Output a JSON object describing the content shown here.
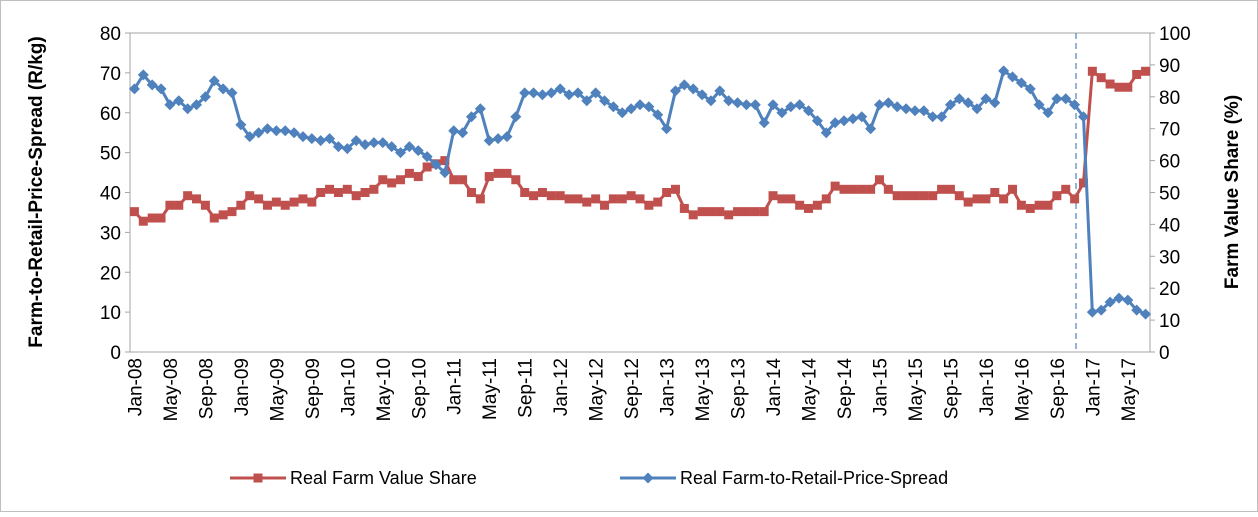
{
  "chart_data": {
    "type": "line",
    "y_label": "Farm-to-Retail-Price-Spread (R/kg)",
    "y2_label": "Farm Value Share (%)",
    "categories": [
      "Jan-08",
      null,
      null,
      null,
      "May-08",
      null,
      null,
      null,
      "Sep-08",
      null,
      null,
      null,
      "Jan-09",
      null,
      null,
      null,
      "May-09",
      null,
      null,
      null,
      "Sep-09",
      null,
      null,
      null,
      "Jan-10",
      null,
      null,
      null,
      "May-10",
      null,
      null,
      null,
      "Sep-10",
      null,
      null,
      null,
      "Jan-11",
      null,
      null,
      null,
      "May-11",
      null,
      null,
      null,
      "Sep-11",
      null,
      null,
      null,
      "Jan-12",
      null,
      null,
      null,
      "May-12",
      null,
      null,
      null,
      "Sep-12",
      null,
      null,
      null,
      "Jan-13",
      null,
      null,
      null,
      "May-13",
      null,
      null,
      null,
      "Sep-13",
      null,
      null,
      null,
      "Jan-14",
      null,
      null,
      null,
      "May-14",
      null,
      null,
      null,
      "Sep-14",
      null,
      null,
      null,
      "Jan-15",
      null,
      null,
      null,
      "May-15",
      null,
      null,
      null,
      "Sep-15",
      null,
      null,
      null,
      "Jan-16",
      null,
      null,
      null,
      "May-16",
      null,
      null,
      null,
      "Sep-16",
      null,
      null,
      null,
      "Jan-17",
      null,
      null,
      null,
      "May-17",
      null,
      null
    ],
    "series": [
      {
        "name": "Real Farm Value Share",
        "color": "#c0504d",
        "marker": "square",
        "axis": "y2",
        "values": [
          44,
          41,
          42,
          42,
          46,
          46,
          49,
          48,
          46,
          42,
          43,
          44,
          46,
          49,
          48,
          46,
          47,
          46,
          47,
          48,
          47,
          50,
          51,
          50,
          51,
          49,
          50,
          51,
          54,
          53,
          54,
          56,
          55,
          58,
          59,
          60,
          54,
          54,
          50,
          48,
          55,
          56,
          56,
          54,
          50,
          49,
          50,
          49,
          49,
          48,
          48,
          47,
          48,
          46,
          48,
          48,
          49,
          48,
          46,
          47,
          50,
          51,
          45,
          43,
          44,
          44,
          44,
          43,
          44,
          44,
          44,
          44,
          49,
          48,
          48,
          46,
          45,
          46,
          48,
          52,
          51,
          51,
          51,
          51,
          54,
          51,
          49,
          49,
          49,
          49,
          49,
          51,
          51,
          49,
          47,
          48,
          48,
          50,
          48,
          51,
          46,
          45,
          46,
          46,
          49,
          51,
          48,
          53,
          88,
          86,
          84,
          83,
          83,
          87,
          88
        ]
      },
      {
        "name": "Real Farm-to-Retail-Price-Spread",
        "color": "#4f81bd",
        "marker": "diamond",
        "values": [
          66,
          69.5,
          67,
          66,
          62,
          63,
          61,
          62,
          64,
          68,
          66,
          65,
          57,
          54,
          55,
          56,
          55.5,
          55.5,
          55,
          54,
          53.5,
          53,
          53.5,
          51.5,
          51,
          53,
          52,
          52.5,
          52.5,
          51.5,
          50,
          51.5,
          50.5,
          49,
          47,
          45,
          55.5,
          55,
          59,
          61,
          53,
          53.5,
          54,
          59,
          65,
          65,
          64.5,
          65,
          66,
          64.5,
          65,
          63,
          65,
          63,
          61.5,
          60,
          61,
          62,
          61.5,
          59.5,
          56,
          65.5,
          67,
          66,
          64.5,
          63,
          65.5,
          63,
          62.5,
          62,
          62,
          57.5,
          62,
          60,
          61.5,
          62,
          60.5,
          58,
          55,
          57.5,
          58,
          58.5,
          59,
          56,
          62,
          62.5,
          61.5,
          61,
          60.5,
          60.5,
          59,
          59,
          62,
          63.5,
          62.5,
          61,
          63.5,
          62.5,
          70.5,
          69,
          67.5,
          66,
          62,
          60,
          63.5,
          63.5,
          62,
          59,
          10,
          10.5,
          12.5,
          13.5,
          13,
          10.5,
          9.5
        ]
      }
    ],
    "ylim": [
      0,
      80
    ],
    "yticks": [
      0,
      10,
      20,
      30,
      40,
      50,
      60,
      70,
      80
    ],
    "y2lim": [
      0,
      100
    ],
    "y2ticks": [
      0,
      10,
      20,
      30,
      40,
      50,
      60,
      70,
      80,
      90,
      100
    ],
    "legend": "bottom"
  }
}
